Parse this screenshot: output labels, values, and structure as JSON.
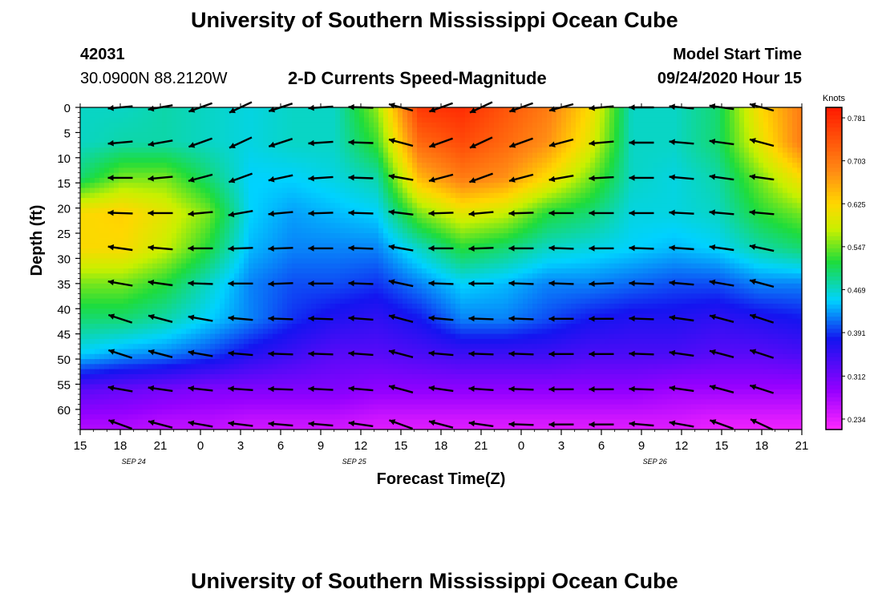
{
  "header": {
    "title": "University of Southern Mississippi Ocean Cube",
    "station_id": "42031",
    "coordinates": "30.0900N 88.2120W",
    "plot_title": "2-D Currents Speed-Magnitude",
    "model_start_label": "Model Start Time",
    "model_start_value": "09/24/2020 Hour 15"
  },
  "footer": {
    "title": "University of Southern Mississippi Ocean Cube"
  },
  "chart_data": {
    "type": "heatmap",
    "title": "2-D Currents Speed-Magnitude",
    "xlabel": "Forecast Time(Z)",
    "ylabel": "Depth (ft)",
    "x_tick_labels": [
      "15",
      "18",
      "21",
      "0",
      "3",
      "6",
      "9",
      "12",
      "15",
      "18",
      "21",
      "0",
      "3",
      "6",
      "9",
      "12",
      "15",
      "18",
      "21"
    ],
    "date_labels": [
      "SEP 24",
      "SEP 25",
      "SEP 26"
    ],
    "x_hours_range": [
      0,
      54
    ],
    "ylim": [
      0,
      64
    ],
    "y_ticks": [
      0,
      5,
      10,
      15,
      20,
      25,
      30,
      35,
      40,
      45,
      50,
      55,
      60
    ],
    "colorbar": {
      "unit": "Knots",
      "tick_labels": [
        "0.781",
        "0.703",
        "0.625",
        "0.547",
        "0.469",
        "0.391",
        "0.312",
        "0.234"
      ],
      "range": [
        0.215,
        0.8
      ]
    },
    "x_hours": [
      0,
      3,
      6,
      9,
      12,
      15,
      18,
      21,
      24,
      27,
      30,
      33,
      36,
      39,
      42,
      45,
      48,
      51,
      54
    ],
    "depths_ft": [
      0,
      7,
      14,
      21,
      28,
      35,
      42,
      49,
      56,
      63
    ],
    "speed_knots": [
      [
        0.47,
        0.47,
        0.48,
        0.47,
        0.46,
        0.47,
        0.47,
        0.56,
        0.77,
        0.78,
        0.74,
        0.7,
        0.62,
        0.47,
        0.47,
        0.5,
        0.62,
        0.7
      ],
      [
        0.47,
        0.48,
        0.48,
        0.47,
        0.46,
        0.47,
        0.47,
        0.53,
        0.72,
        0.75,
        0.72,
        0.68,
        0.6,
        0.47,
        0.47,
        0.5,
        0.6,
        0.7
      ],
      [
        0.5,
        0.55,
        0.55,
        0.5,
        0.45,
        0.45,
        0.46,
        0.48,
        0.65,
        0.7,
        0.68,
        0.62,
        0.55,
        0.47,
        0.46,
        0.48,
        0.55,
        0.62
      ],
      [
        0.62,
        0.63,
        0.6,
        0.55,
        0.45,
        0.43,
        0.44,
        0.45,
        0.55,
        0.6,
        0.58,
        0.52,
        0.5,
        0.46,
        0.46,
        0.47,
        0.52,
        0.55
      ],
      [
        0.62,
        0.62,
        0.58,
        0.52,
        0.44,
        0.42,
        0.42,
        0.42,
        0.47,
        0.52,
        0.5,
        0.47,
        0.46,
        0.45,
        0.44,
        0.45,
        0.48,
        0.5
      ],
      [
        0.55,
        0.55,
        0.52,
        0.47,
        0.42,
        0.4,
        0.4,
        0.39,
        0.42,
        0.45,
        0.44,
        0.42,
        0.42,
        0.41,
        0.4,
        0.4,
        0.42,
        0.42
      ],
      [
        0.5,
        0.5,
        0.48,
        0.45,
        0.42,
        0.39,
        0.37,
        0.36,
        0.38,
        0.42,
        0.42,
        0.4,
        0.38,
        0.37,
        0.37,
        0.36,
        0.37,
        0.38
      ],
      [
        0.45,
        0.43,
        0.42,
        0.4,
        0.37,
        0.35,
        0.33,
        0.33,
        0.34,
        0.35,
        0.35,
        0.35,
        0.34,
        0.34,
        0.34,
        0.33,
        0.33,
        0.34
      ],
      [
        0.33,
        0.32,
        0.31,
        0.3,
        0.3,
        0.3,
        0.3,
        0.29,
        0.29,
        0.29,
        0.29,
        0.29,
        0.29,
        0.29,
        0.28,
        0.28,
        0.28,
        0.28
      ],
      [
        0.27,
        0.27,
        0.26,
        0.26,
        0.25,
        0.25,
        0.25,
        0.24,
        0.24,
        0.24,
        0.24,
        0.24,
        0.24,
        0.24,
        0.24,
        0.23,
        0.23,
        0.23
      ]
    ],
    "vector_direction_deg": [
      [
        185,
        190,
        200,
        205,
        198,
        184,
        178,
        165,
        200,
        205,
        200,
        195,
        185,
        180,
        175,
        172,
        165,
        178
      ],
      [
        185,
        190,
        200,
        205,
        198,
        184,
        178,
        165,
        200,
        205,
        200,
        195,
        185,
        180,
        175,
        172,
        165,
        178
      ],
      [
        180,
        185,
        195,
        200,
        192,
        184,
        178,
        170,
        195,
        200,
        195,
        190,
        183,
        180,
        175,
        172,
        172,
        178
      ],
      [
        178,
        180,
        185,
        190,
        185,
        182,
        178,
        173,
        182,
        185,
        182,
        180,
        180,
        180,
        177,
        175,
        175,
        178
      ],
      [
        172,
        175,
        180,
        182,
        182,
        180,
        178,
        170,
        180,
        182,
        180,
        178,
        180,
        178,
        176,
        172,
        168,
        180
      ],
      [
        170,
        172,
        178,
        180,
        182,
        180,
        178,
        168,
        178,
        180,
        178,
        178,
        182,
        178,
        175,
        170,
        165,
        178
      ],
      [
        162,
        165,
        170,
        175,
        178,
        178,
        176,
        165,
        175,
        178,
        178,
        180,
        180,
        178,
        172,
        165,
        162,
        168
      ],
      [
        162,
        165,
        170,
        175,
        178,
        178,
        176,
        165,
        175,
        178,
        178,
        180,
        180,
        178,
        172,
        165,
        162,
        168
      ],
      [
        170,
        172,
        174,
        176,
        178,
        177,
        175,
        165,
        172,
        176,
        178,
        180,
        180,
        178,
        172,
        165,
        162,
        168
      ],
      [
        160,
        165,
        170,
        173,
        175,
        175,
        172,
        160,
        165,
        172,
        178,
        180,
        180,
        175,
        170,
        160,
        155,
        160
      ]
    ]
  }
}
